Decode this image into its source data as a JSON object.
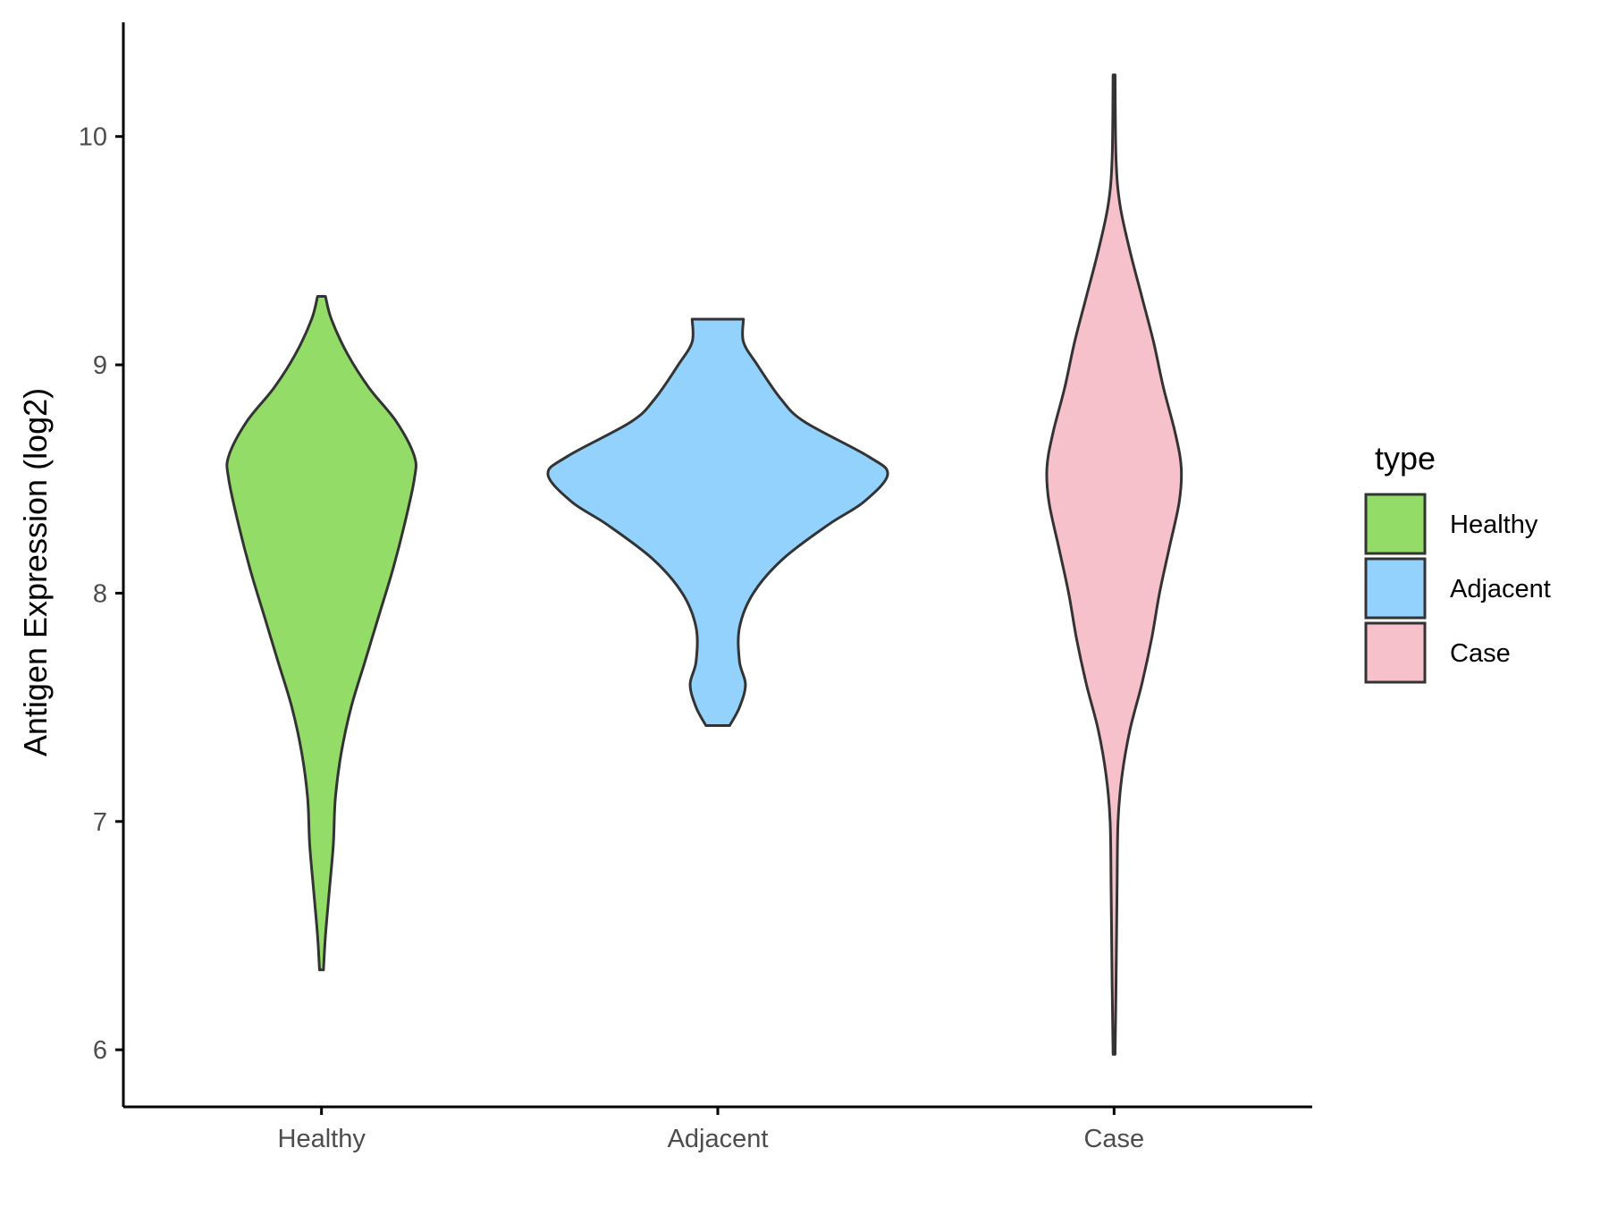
{
  "chart_data": {
    "type": "violin",
    "ylabel": "Antigen Expression (log2)",
    "xlabel": "",
    "ylim": [
      5.75,
      10.5
    ],
    "yticks": [
      6,
      7,
      8,
      9,
      10
    ],
    "categories": [
      "Healthy",
      "Adjacent",
      "Case"
    ],
    "legend": {
      "title": "type",
      "position": "right",
      "entries": [
        {
          "label": "Healthy",
          "color": "#93dc68"
        },
        {
          "label": "Adjacent",
          "color": "#93d2fc"
        },
        {
          "label": "Case",
          "color": "#f7c1cc"
        }
      ]
    },
    "grid": false,
    "series": [
      {
        "name": "Healthy",
        "color": "#93dc68",
        "min": 6.35,
        "max": 9.3,
        "density": [
          [
            6.35,
            0.01
          ],
          [
            6.5,
            0.02
          ],
          [
            6.7,
            0.04
          ],
          [
            6.9,
            0.06
          ],
          [
            7.1,
            0.07
          ],
          [
            7.3,
            0.1
          ],
          [
            7.5,
            0.15
          ],
          [
            7.7,
            0.22
          ],
          [
            7.9,
            0.29
          ],
          [
            8.1,
            0.36
          ],
          [
            8.3,
            0.42
          ],
          [
            8.5,
            0.47
          ],
          [
            8.6,
            0.47
          ],
          [
            8.75,
            0.38
          ],
          [
            8.9,
            0.24
          ],
          [
            9.05,
            0.13
          ],
          [
            9.2,
            0.05
          ],
          [
            9.3,
            0.02
          ]
        ]
      },
      {
        "name": "Adjacent",
        "color": "#93d2fc",
        "min": 7.42,
        "max": 9.2,
        "density": [
          [
            7.42,
            0.06
          ],
          [
            7.5,
            0.11
          ],
          [
            7.6,
            0.14
          ],
          [
            7.7,
            0.11
          ],
          [
            7.85,
            0.11
          ],
          [
            8.0,
            0.18
          ],
          [
            8.15,
            0.33
          ],
          [
            8.3,
            0.56
          ],
          [
            8.4,
            0.74
          ],
          [
            8.52,
            0.86
          ],
          [
            8.6,
            0.76
          ],
          [
            8.75,
            0.44
          ],
          [
            8.85,
            0.32
          ],
          [
            9.0,
            0.2
          ],
          [
            9.1,
            0.13
          ],
          [
            9.2,
            0.13
          ]
        ]
      },
      {
        "name": "Case",
        "color": "#f7c1cc",
        "min": 5.98,
        "max": 10.27,
        "density": [
          [
            5.98,
            0.005
          ],
          [
            6.3,
            0.01
          ],
          [
            6.7,
            0.015
          ],
          [
            7.0,
            0.02
          ],
          [
            7.2,
            0.04
          ],
          [
            7.4,
            0.08
          ],
          [
            7.6,
            0.14
          ],
          [
            7.8,
            0.19
          ],
          [
            8.0,
            0.23
          ],
          [
            8.2,
            0.28
          ],
          [
            8.4,
            0.33
          ],
          [
            8.55,
            0.34
          ],
          [
            8.7,
            0.31
          ],
          [
            8.9,
            0.25
          ],
          [
            9.1,
            0.2
          ],
          [
            9.3,
            0.14
          ],
          [
            9.5,
            0.08
          ],
          [
            9.7,
            0.03
          ],
          [
            9.9,
            0.01
          ],
          [
            10.27,
            0.005
          ]
        ]
      }
    ]
  }
}
